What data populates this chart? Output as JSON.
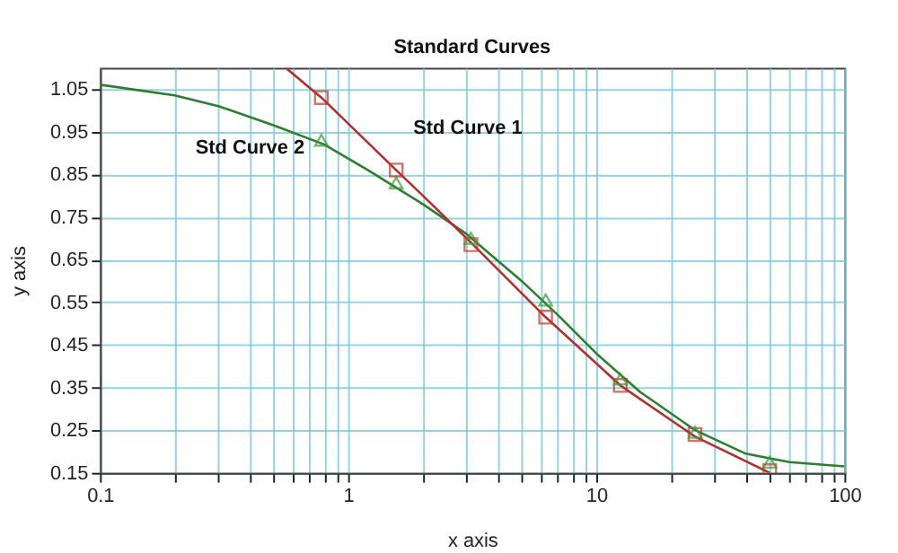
{
  "chart_data": {
    "type": "line",
    "title": "Standard Curves",
    "xlabel": "x axis",
    "ylabel": "y axis",
    "log": "x",
    "grid": true,
    "xlim": [
      0.1,
      100
    ],
    "ylim": [
      0.15,
      1.1
    ],
    "xticks": [
      0.1,
      {
        "value": 0.2,
        "label": null
      },
      {
        "value": 0.3,
        "label": null
      },
      {
        "value": 0.4,
        "label": null
      },
      {
        "value": 0.5,
        "label": null
      },
      {
        "value": 0.6,
        "label": null
      },
      {
        "value": 0.7,
        "label": null
      },
      {
        "value": 0.8,
        "label": null
      },
      {
        "value": 0.9,
        "label": null
      },
      1,
      {
        "value": 2,
        "label": null
      },
      {
        "value": 3,
        "label": null
      },
      {
        "value": 4,
        "label": null
      },
      {
        "value": 5,
        "label": null
      },
      {
        "value": 6,
        "label": null
      },
      {
        "value": 7,
        "label": null
      },
      {
        "value": 8,
        "label": null
      },
      {
        "value": 9,
        "label": null
      },
      10,
      {
        "value": 20,
        "label": null
      },
      {
        "value": 30,
        "label": null
      },
      {
        "value": 40,
        "label": null
      },
      {
        "value": 50,
        "label": null
      },
      {
        "value": 60,
        "label": null
      },
      {
        "value": 70,
        "label": null
      },
      {
        "value": 80,
        "label": null
      },
      {
        "value": 90,
        "label": null
      },
      100
    ],
    "yticks": [
      0.15,
      0.25,
      0.35,
      0.45,
      0.55,
      0.65,
      0.75,
      0.85,
      0.95,
      1.05
    ],
    "series": [
      {
        "color": "#2e7d32",
        "line_style": "solid",
        "marker": "none",
        "x": [
          0.1,
          0.2,
          0.3,
          0.5,
          0.8,
          1.2,
          2,
          3,
          5,
          7,
          10,
          15,
          25,
          40,
          60,
          100
        ],
        "values": [
          1.06,
          1.035,
          1.01,
          0.965,
          0.92,
          0.86,
          0.78,
          0.71,
          0.6,
          0.52,
          0.43,
          0.34,
          0.25,
          0.195,
          0.175,
          0.165
        ]
      },
      {
        "color": "#b03030",
        "line_style": "solid",
        "marker": "none",
        "x": [
          0.56,
          0.78,
          1.56,
          2,
          3.125,
          6.25,
          12.5,
          25,
          50
        ],
        "values": [
          1.1,
          1.03,
          0.86,
          0.8,
          0.69,
          0.515,
          0.355,
          0.235,
          0.15
        ]
      },
      {
        "type": "scatter",
        "color": "#c0392b",
        "marker": "square",
        "x": [
          0.78,
          1.5625,
          3.125,
          6.25,
          12.5,
          25,
          50
        ],
        "values": [
          1.03,
          0.86,
          0.685,
          0.515,
          0.355,
          0.24,
          0.155
        ]
      },
      {
        "type": "scatter",
        "color": "#3a9a3a",
        "marker": "triangle",
        "x": [
          0.78,
          1.5625,
          3.125,
          6.25,
          12.5,
          25,
          50
        ],
        "values": [
          0.93,
          0.83,
          0.7,
          0.555,
          0.37,
          0.245,
          0.175
        ]
      }
    ],
    "annotations": [
      "Std Curve 1",
      "Std Curve 2"
    ]
  }
}
